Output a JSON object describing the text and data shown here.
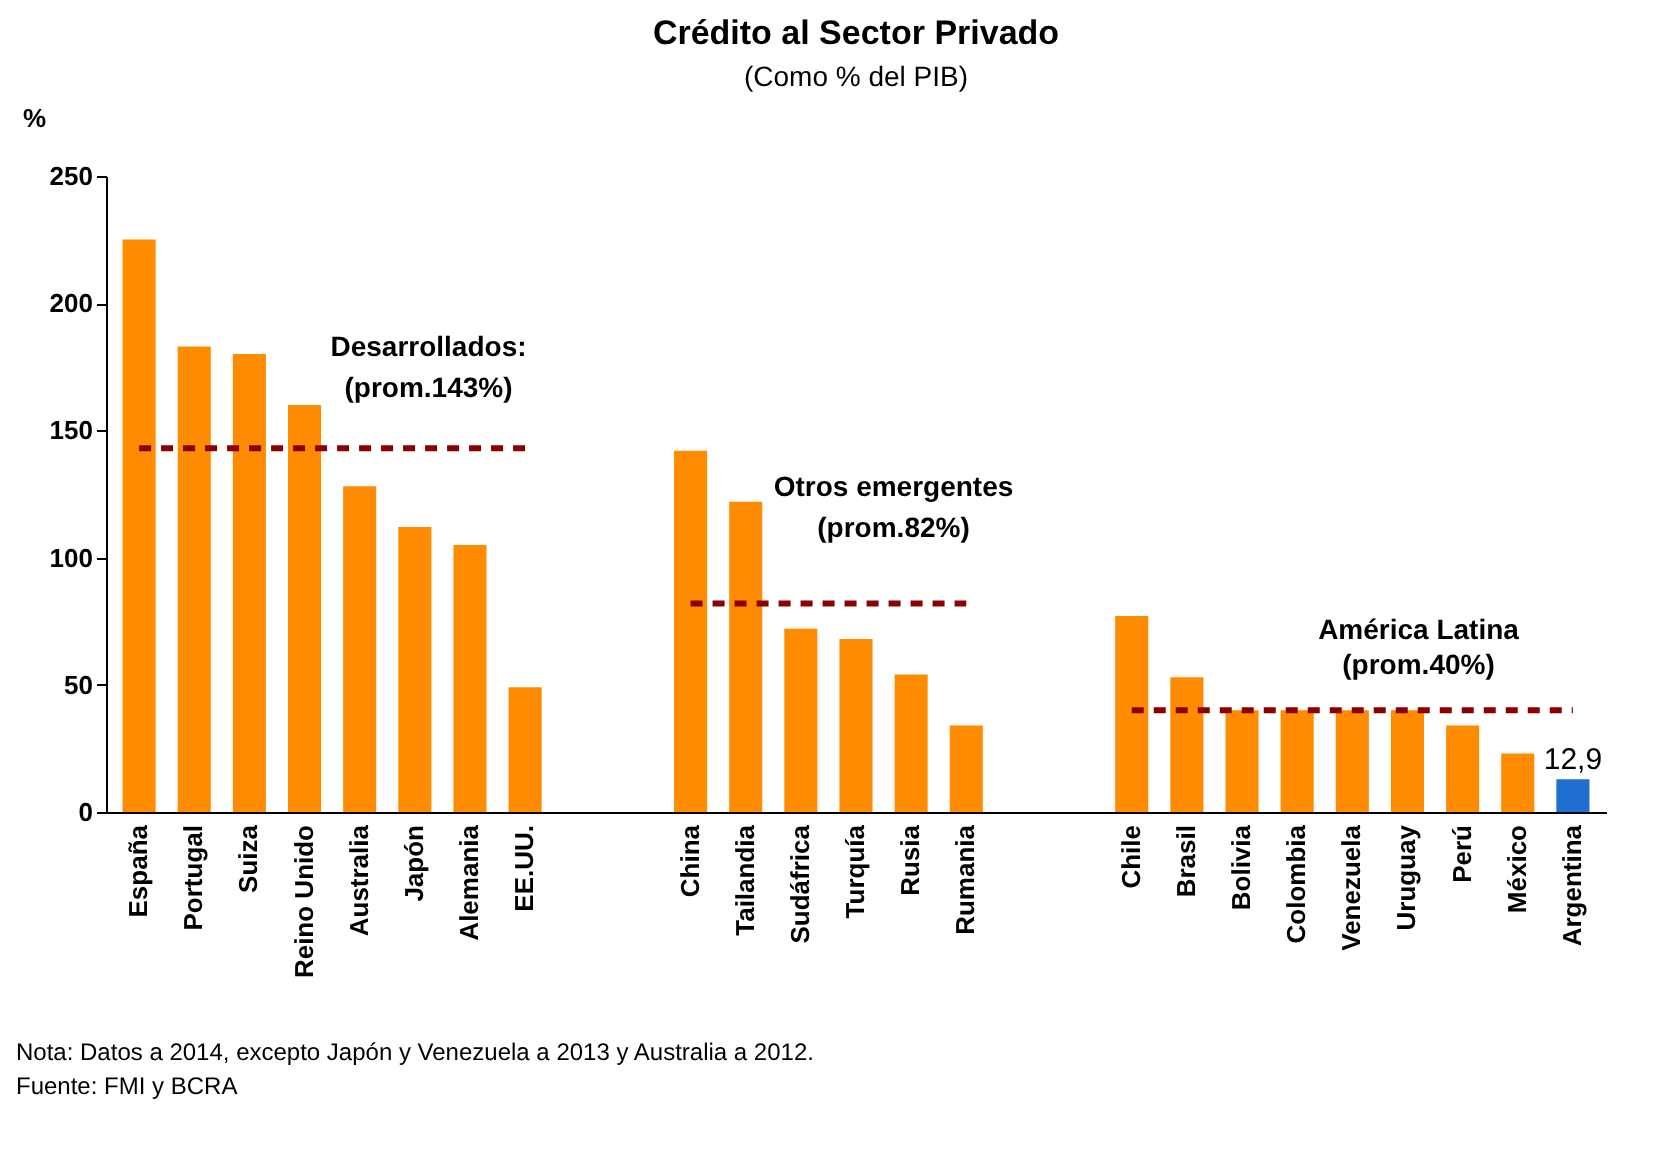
{
  "chart_data": {
    "type": "bar",
    "title": "Crédito al Sector Privado",
    "subtitle": "(Como % del PIB)",
    "ylabel": "%",
    "categories": [
      "España",
      "Portugal",
      "Suiza",
      "Reino Unido",
      "Australia",
      "Japón",
      "Alemania",
      "EE.UU.",
      null,
      null,
      "China",
      "Tailandia",
      "Sudáfrica",
      "Turquía",
      "Rusia",
      "Rumania",
      null,
      null,
      "Chile",
      "Brasil",
      "Bolivia",
      "Colombia",
      "Venezuela",
      "Uruguay",
      "Perú",
      "México",
      "Argentina"
    ],
    "ylim": [
      0,
      250
    ],
    "yticks": [
      0,
      50,
      100,
      150,
      200,
      250
    ],
    "grid": false,
    "legend": false,
    "series": [
      {
        "values": [
          225,
          183,
          180,
          160,
          128,
          112,
          105,
          49,
          null,
          null,
          142,
          122,
          72,
          68,
          54,
          34,
          null,
          null,
          77,
          53,
          40,
          40,
          40,
          40,
          34,
          23,
          12.9
        ],
        "colors": [
          "#ff8c00",
          "#ff8c00",
          "#ff8c00",
          "#ff8c00",
          "#ff8c00",
          "#ff8c00",
          "#ff8c00",
          "#ff8c00",
          null,
          null,
          "#ff8c00",
          "#ff8c00",
          "#ff8c00",
          "#ff8c00",
          "#ff8c00",
          "#ff8c00",
          null,
          null,
          "#ff8c00",
          "#ff8c00",
          "#ff8c00",
          "#ff8c00",
          "#ff8c00",
          "#ff8c00",
          "#ff8c00",
          "#ff8c00",
          "#1f6fd1"
        ],
        "value_labels": [
          null,
          null,
          null,
          null,
          null,
          null,
          null,
          null,
          null,
          null,
          null,
          null,
          null,
          null,
          null,
          null,
          null,
          null,
          null,
          null,
          null,
          null,
          null,
          null,
          null,
          null,
          "12,9"
        ]
      },
      {
        "type": "line",
        "color": "#8b0000",
        "line_style": "dashed",
        "marker": "none",
        "values": [
          143,
          143,
          143,
          143,
          143,
          143,
          143,
          143,
          null,
          null,
          null,
          null,
          null,
          null,
          null,
          null,
          null,
          null,
          null,
          null,
          null,
          null,
          null,
          null,
          null,
          null,
          null
        ]
      },
      {
        "type": "line",
        "color": "#8b0000",
        "line_style": "dashed",
        "marker": "none",
        "values": [
          null,
          null,
          null,
          null,
          null,
          null,
          null,
          null,
          null,
          null,
          82,
          82,
          82,
          82,
          82,
          82,
          null,
          null,
          null,
          null,
          null,
          null,
          null,
          null,
          null,
          null,
          null
        ]
      },
      {
        "type": "line",
        "color": "#8b0000",
        "line_style": "dashed",
        "marker": "none",
        "values": [
          null,
          null,
          null,
          null,
          null,
          null,
          null,
          null,
          null,
          null,
          null,
          null,
          null,
          null,
          null,
          null,
          null,
          null,
          40,
          40,
          40,
          40,
          40,
          40,
          40,
          40,
          40
        ]
      }
    ],
    "annotations": [
      "Desarrollados:",
      "(prom.143%)",
      "Otros emergentes",
      "(prom.82%)",
      "América Latina",
      "(prom.40%)",
      "Nota: Datos a 2014, excepto Japón y Venezuela a 2013 y Australia a 2012.",
      "Fuente: FMI y BCRA"
    ]
  }
}
